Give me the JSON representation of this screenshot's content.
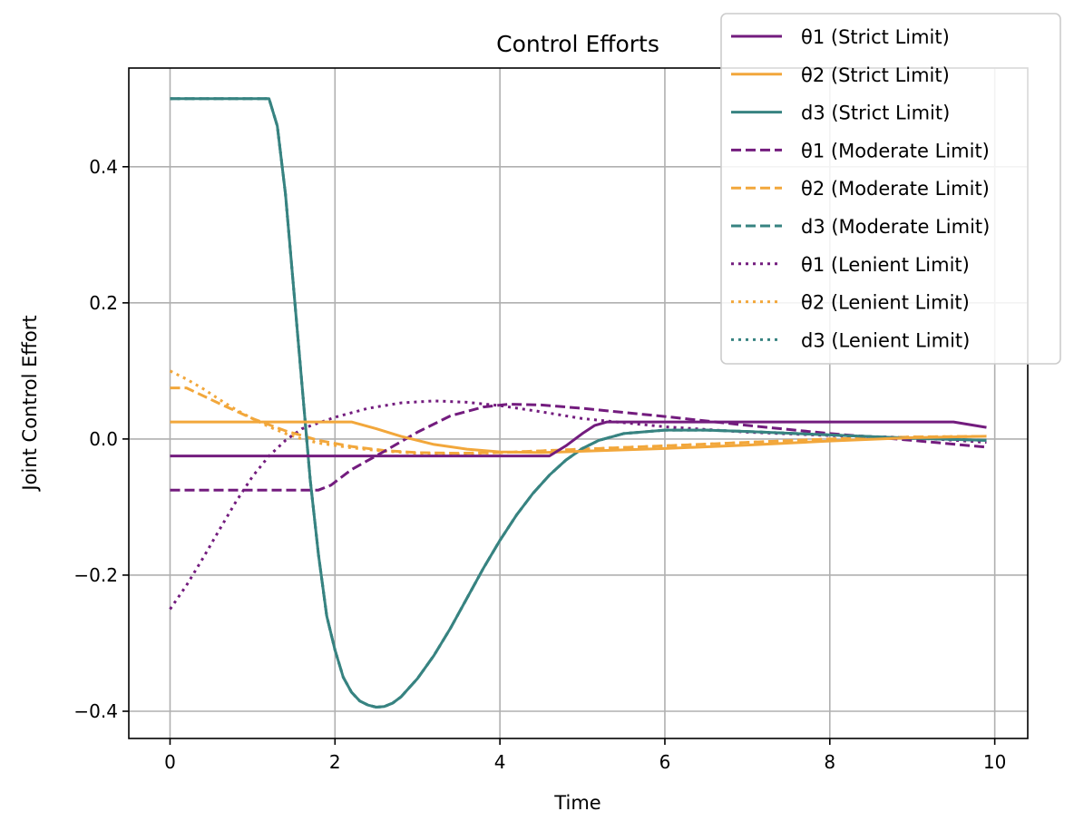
{
  "chart_data": {
    "type": "line",
    "title": "Control Efforts",
    "xlabel": "Time",
    "ylabel": "Joint Control Effort",
    "xlim": [
      -0.5,
      10.4
    ],
    "ylim": [
      -0.44,
      0.545
    ],
    "xticks": [
      0,
      2,
      4,
      6,
      8,
      10
    ],
    "yticks": [
      -0.4,
      -0.2,
      0.0,
      0.2,
      0.4
    ],
    "xtick_labels": [
      "0",
      "2",
      "4",
      "6",
      "8",
      "10"
    ],
    "ytick_labels": [
      "−0.4",
      "−0.2",
      "0.0",
      "0.2",
      "0.4"
    ],
    "grid": true,
    "legend_position": "top-right",
    "colors": {
      "theta1": "#731c7e",
      "theta2": "#f2a73b",
      "d3": "#378381"
    },
    "series": [
      {
        "name": "θ1 (Strict Limit)",
        "color": "#731c7e",
        "dash": "solid",
        "points": [
          [
            0,
            -0.025
          ],
          [
            4.6,
            -0.025
          ],
          [
            4.8,
            -0.01
          ],
          [
            5.0,
            0.008
          ],
          [
            5.15,
            0.02
          ],
          [
            5.3,
            0.025
          ],
          [
            9.5,
            0.025
          ],
          [
            9.9,
            0.017
          ]
        ]
      },
      {
        "name": "θ2 (Strict Limit)",
        "color": "#f2a73b",
        "dash": "solid",
        "points": [
          [
            0,
            0.025
          ],
          [
            2.2,
            0.025
          ],
          [
            2.5,
            0.015
          ],
          [
            2.8,
            0.004
          ],
          [
            3.2,
            -0.008
          ],
          [
            3.6,
            -0.015
          ],
          [
            4.0,
            -0.019
          ],
          [
            4.5,
            -0.02
          ],
          [
            5.0,
            -0.018
          ],
          [
            6.0,
            -0.014
          ],
          [
            7.0,
            -0.009
          ],
          [
            8.0,
            -0.003
          ],
          [
            9.0,
            0.002
          ],
          [
            9.9,
            0.004
          ]
        ]
      },
      {
        "name": "d3 (Strict Limit)",
        "color": "#378381",
        "dash": "solid",
        "points": [
          [
            0,
            0.5
          ],
          [
            1.2,
            0.5
          ],
          [
            1.3,
            0.46
          ],
          [
            1.4,
            0.36
          ],
          [
            1.5,
            0.22
          ],
          [
            1.6,
            0.08
          ],
          [
            1.7,
            -0.06
          ],
          [
            1.8,
            -0.17
          ],
          [
            1.9,
            -0.26
          ],
          [
            2.0,
            -0.31
          ],
          [
            2.1,
            -0.35
          ],
          [
            2.2,
            -0.372
          ],
          [
            2.3,
            -0.385
          ],
          [
            2.4,
            -0.391
          ],
          [
            2.5,
            -0.394
          ],
          [
            2.6,
            -0.393
          ],
          [
            2.7,
            -0.388
          ],
          [
            2.8,
            -0.379
          ],
          [
            3.0,
            -0.352
          ],
          [
            3.2,
            -0.318
          ],
          [
            3.4,
            -0.278
          ],
          [
            3.6,
            -0.234
          ],
          [
            3.8,
            -0.19
          ],
          [
            4.0,
            -0.149
          ],
          [
            4.2,
            -0.112
          ],
          [
            4.4,
            -0.08
          ],
          [
            4.6,
            -0.053
          ],
          [
            4.8,
            -0.031
          ],
          [
            5.0,
            -0.014
          ],
          [
            5.2,
            -0.002
          ],
          [
            5.5,
            0.008
          ],
          [
            6.0,
            0.013
          ],
          [
            6.5,
            0.013
          ],
          [
            7.0,
            0.011
          ],
          [
            8.0,
            0.006
          ],
          [
            9.0,
            0.001
          ],
          [
            9.9,
            -0.002
          ]
        ]
      },
      {
        "name": "θ1 (Moderate Limit)",
        "color": "#731c7e",
        "dash": "dashed",
        "points": [
          [
            0,
            -0.075
          ],
          [
            1.8,
            -0.075
          ],
          [
            1.95,
            -0.068
          ],
          [
            2.2,
            -0.045
          ],
          [
            2.6,
            -0.018
          ],
          [
            3.0,
            0.01
          ],
          [
            3.4,
            0.034
          ],
          [
            3.8,
            0.047
          ],
          [
            4.1,
            0.051
          ],
          [
            4.5,
            0.05
          ],
          [
            5.0,
            0.045
          ],
          [
            6.0,
            0.033
          ],
          [
            7.0,
            0.02
          ],
          [
            8.0,
            0.008
          ],
          [
            9.0,
            -0.002
          ],
          [
            9.9,
            -0.012
          ]
        ]
      },
      {
        "name": "θ2 (Moderate Limit)",
        "color": "#f2a73b",
        "dash": "dashed",
        "points": [
          [
            0,
            0.075
          ],
          [
            0.2,
            0.075
          ],
          [
            0.6,
            0.052
          ],
          [
            1.0,
            0.03
          ],
          [
            1.4,
            0.012
          ],
          [
            1.8,
            -0.002
          ],
          [
            2.2,
            -0.011
          ],
          [
            2.6,
            -0.017
          ],
          [
            3.0,
            -0.02
          ],
          [
            3.5,
            -0.021
          ],
          [
            4.0,
            -0.02
          ],
          [
            5.0,
            -0.015
          ],
          [
            6.0,
            -0.01
          ],
          [
            7.0,
            -0.005
          ],
          [
            8.0,
            0.0
          ],
          [
            9.0,
            0.003
          ],
          [
            9.9,
            0.004
          ]
        ]
      },
      {
        "name": "d3 (Moderate Limit)",
        "color": "#378381",
        "dash": "dashed",
        "points": [
          [
            0,
            0.5
          ],
          [
            1.2,
            0.5
          ],
          [
            1.3,
            0.46
          ],
          [
            1.4,
            0.36
          ],
          [
            1.5,
            0.22
          ],
          [
            1.6,
            0.08
          ],
          [
            1.7,
            -0.06
          ],
          [
            1.8,
            -0.17
          ],
          [
            1.9,
            -0.26
          ],
          [
            2.0,
            -0.31
          ],
          [
            2.1,
            -0.35
          ],
          [
            2.2,
            -0.372
          ],
          [
            2.3,
            -0.385
          ],
          [
            2.4,
            -0.391
          ],
          [
            2.5,
            -0.394
          ],
          [
            2.6,
            -0.393
          ],
          [
            2.7,
            -0.388
          ],
          [
            2.8,
            -0.379
          ],
          [
            3.0,
            -0.352
          ],
          [
            3.2,
            -0.318
          ],
          [
            3.4,
            -0.278
          ],
          [
            3.6,
            -0.234
          ],
          [
            3.8,
            -0.19
          ],
          [
            4.0,
            -0.149
          ],
          [
            4.2,
            -0.112
          ],
          [
            4.4,
            -0.08
          ],
          [
            4.6,
            -0.053
          ],
          [
            4.8,
            -0.031
          ],
          [
            5.0,
            -0.014
          ],
          [
            5.2,
            -0.002
          ],
          [
            5.5,
            0.008
          ],
          [
            6.0,
            0.013
          ],
          [
            6.5,
            0.013
          ],
          [
            7.0,
            0.011
          ],
          [
            8.0,
            0.006
          ],
          [
            9.0,
            0.001
          ],
          [
            9.9,
            -0.002
          ]
        ]
      },
      {
        "name": "θ1 (Lenient Limit)",
        "color": "#731c7e",
        "dash": "dotted",
        "points": [
          [
            0,
            -0.25
          ],
          [
            0.2,
            -0.215
          ],
          [
            0.4,
            -0.175
          ],
          [
            0.6,
            -0.133
          ],
          [
            0.8,
            -0.092
          ],
          [
            1.0,
            -0.055
          ],
          [
            1.2,
            -0.025
          ],
          [
            1.4,
            -0.002
          ],
          [
            1.6,
            0.015
          ],
          [
            2.0,
            0.032
          ],
          [
            2.4,
            0.045
          ],
          [
            2.8,
            0.053
          ],
          [
            3.2,
            0.056
          ],
          [
            3.6,
            0.054
          ],
          [
            4.0,
            0.049
          ],
          [
            4.5,
            0.04
          ],
          [
            5.0,
            0.03
          ],
          [
            6.0,
            0.018
          ],
          [
            7.0,
            0.01
          ],
          [
            8.0,
            0.005
          ],
          [
            9.0,
            0.002
          ],
          [
            9.9,
            -0.005
          ]
        ]
      },
      {
        "name": "θ2 (Lenient Limit)",
        "color": "#f2a73b",
        "dash": "dotted",
        "points": [
          [
            0,
            0.1
          ],
          [
            0.2,
            0.088
          ],
          [
            0.4,
            0.074
          ],
          [
            0.6,
            0.058
          ],
          [
            0.8,
            0.043
          ],
          [
            1.0,
            0.03
          ],
          [
            1.2,
            0.018
          ],
          [
            1.4,
            0.008
          ],
          [
            1.6,
            0.0
          ],
          [
            1.8,
            -0.006
          ],
          [
            2.2,
            -0.013
          ],
          [
            2.6,
            -0.018
          ],
          [
            3.0,
            -0.021
          ],
          [
            3.5,
            -0.022
          ],
          [
            4.0,
            -0.02
          ],
          [
            5.0,
            -0.015
          ],
          [
            6.0,
            -0.01
          ],
          [
            7.0,
            -0.005
          ],
          [
            8.0,
            0.0
          ],
          [
            9.0,
            0.003
          ],
          [
            9.9,
            0.004
          ]
        ]
      },
      {
        "name": "d3 (Lenient Limit)",
        "color": "#378381",
        "dash": "dotted",
        "points": [
          [
            0,
            0.5
          ],
          [
            1.2,
            0.5
          ],
          [
            1.3,
            0.46
          ],
          [
            1.4,
            0.36
          ],
          [
            1.5,
            0.22
          ],
          [
            1.6,
            0.08
          ],
          [
            1.7,
            -0.06
          ],
          [
            1.8,
            -0.17
          ],
          [
            1.9,
            -0.26
          ],
          [
            2.0,
            -0.31
          ],
          [
            2.1,
            -0.35
          ],
          [
            2.2,
            -0.372
          ],
          [
            2.3,
            -0.385
          ],
          [
            2.4,
            -0.391
          ],
          [
            2.5,
            -0.394
          ],
          [
            2.6,
            -0.393
          ],
          [
            2.7,
            -0.388
          ],
          [
            2.8,
            -0.379
          ],
          [
            3.0,
            -0.352
          ],
          [
            3.2,
            -0.318
          ],
          [
            3.4,
            -0.278
          ],
          [
            3.6,
            -0.234
          ],
          [
            3.8,
            -0.19
          ],
          [
            4.0,
            -0.149
          ],
          [
            4.2,
            -0.112
          ],
          [
            4.4,
            -0.08
          ],
          [
            4.6,
            -0.053
          ],
          [
            4.8,
            -0.031
          ],
          [
            5.0,
            -0.014
          ],
          [
            5.2,
            -0.002
          ],
          [
            5.5,
            0.008
          ],
          [
            6.0,
            0.013
          ],
          [
            6.5,
            0.013
          ],
          [
            7.0,
            0.011
          ],
          [
            8.0,
            0.006
          ],
          [
            9.0,
            0.001
          ],
          [
            9.9,
            -0.002
          ]
        ]
      }
    ]
  }
}
